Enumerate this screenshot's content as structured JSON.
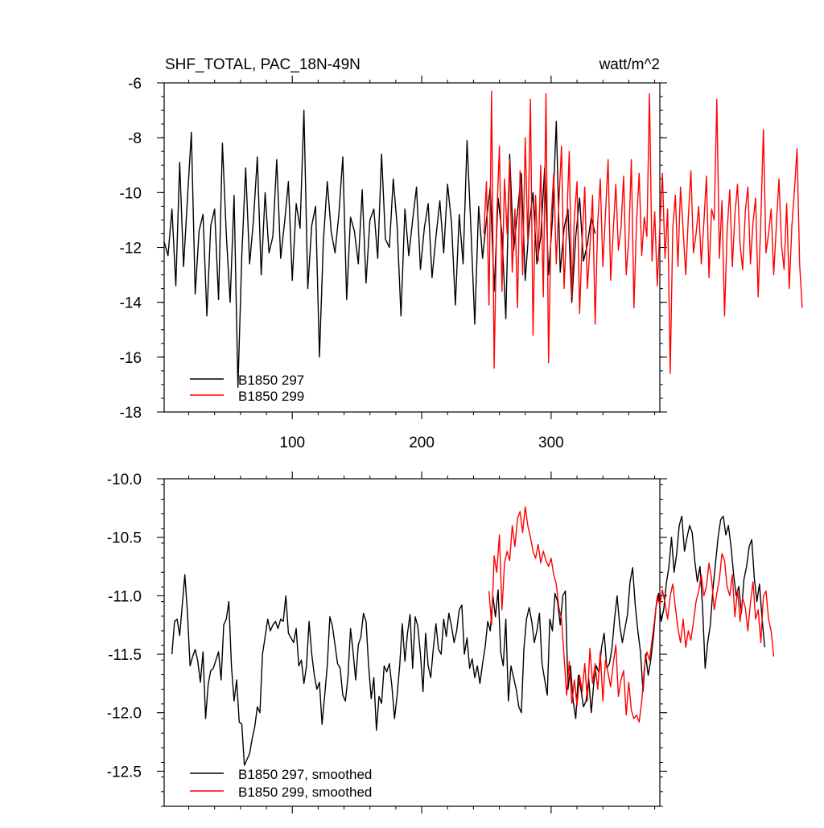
{
  "chart_data": [
    {
      "type": "line",
      "title": "SHF_TOTAL, PAC_18N-49N",
      "units": "watt/m^2",
      "xlim": [
        1,
        384
      ],
      "ylim": [
        -18,
        -6
      ],
      "x_ticks": [
        100,
        200,
        300
      ],
      "y_ticks": [
        -18,
        -16,
        -14,
        -12,
        -10,
        -8,
        -6
      ],
      "y_tick_labels": [
        "-18",
        "-16",
        "-14",
        "-12",
        "-10",
        "-8",
        "-6"
      ],
      "legend": {
        "placement": "bottom-left"
      },
      "series": [
        {
          "name": "B1850 297",
          "color": "#000000",
          "x_start": 1,
          "x_step": 3,
          "values": [
            -11.8,
            -12.3,
            -10.6,
            -13.4,
            -8.9,
            -12.7,
            -10.2,
            -7.8,
            -13.7,
            -11.4,
            -10.8,
            -14.5,
            -11.2,
            -10.6,
            -13.9,
            -8.2,
            -11.5,
            -14.0,
            -10.1,
            -17.1,
            -12.3,
            -9.1,
            -12.6,
            -11.0,
            -8.7,
            -13.0,
            -10.0,
            -12.2,
            -11.6,
            -8.8,
            -12.4,
            -11.1,
            -9.6,
            -13.2,
            -10.4,
            -11.3,
            -7.0,
            -13.5,
            -11.2,
            -10.5,
            -16.0,
            -11.8,
            -9.6,
            -11.4,
            -12.2,
            -10.8,
            -8.7,
            -13.9,
            -10.9,
            -11.4,
            -12.6,
            -9.9,
            -13.3,
            -11.0,
            -10.6,
            -12.4,
            -8.6,
            -11.7,
            -12.0,
            -9.5,
            -11.2,
            -14.5,
            -10.6,
            -12.3,
            -11.0,
            -9.8,
            -12.8,
            -11.3,
            -10.4,
            -13.1,
            -11.6,
            -10.3,
            -12.2,
            -9.7,
            -11.1,
            -14.1,
            -10.8,
            -12.6,
            -8.1,
            -11.3,
            -14.8,
            -10.5,
            -12.4,
            -11.0,
            -9.8,
            -13.6,
            -10.2,
            -11.5,
            -14.6,
            -8.6,
            -12.1,
            -10.7,
            -9.3,
            -13.2,
            -11.2,
            -10.0,
            -12.6,
            -11.6,
            -9.1,
            -13.0,
            -11.0,
            -7.4,
            -12.9,
            -11.3,
            -10.6,
            -14.0,
            -11.6,
            -10.2,
            -12.5,
            -11.9,
            -10.9,
            -11.5
          ]
        },
        {
          "name": "B1850 299",
          "color": "#ff0000",
          "x_start": 248,
          "x_step": 2,
          "values": [
            -11.5,
            -9.6,
            -14.1,
            -6.3,
            -16.4,
            -11.0,
            -8.3,
            -13.6,
            -9.5,
            -11.5,
            -8.8,
            -12.9,
            -10.6,
            -14.2,
            -9.2,
            -13.0,
            -8.0,
            -11.8,
            -6.6,
            -15.2,
            -10.1,
            -12.5,
            -9.0,
            -13.8,
            -6.4,
            -16.2,
            -11.0,
            -9.3,
            -12.6,
            -10.4,
            -8.3,
            -13.5,
            -11.2,
            -8.5,
            -13.8,
            -10.9,
            -9.6,
            -14.4,
            -11.7,
            -9.8,
            -13.5,
            -12.0,
            -10.1,
            -14.8,
            -11.1,
            -9.5,
            -12.7,
            -10.8,
            -8.8,
            -13.2,
            -11.4,
            -9.7,
            -12.1,
            -11.3,
            -9.4,
            -13.0,
            -11.7,
            -8.8,
            -14.2,
            -11.1,
            -9.3,
            -12.3,
            -10.9,
            -11.6,
            -6.4,
            -12.5,
            -10.7,
            -13.4,
            -11.3,
            -9.3,
            -12.4,
            -10.6,
            -16.6,
            -11.3,
            -10.1,
            -12.7,
            -9.8,
            -11.4,
            -13.0,
            -10.9,
            -9.2,
            -12.2,
            -11.5,
            -10.5,
            -12.6,
            -11.1,
            -9.4,
            -13.1,
            -10.6,
            -11.0,
            -6.6,
            -12.4,
            -10.3,
            -14.5,
            -11.4,
            -9.9,
            -12.7,
            -10.8,
            -9.7,
            -11.9,
            -12.8,
            -10.7,
            -9.8,
            -12.6,
            -11.1,
            -10.2,
            -13.8,
            -11.0,
            -7.7,
            -12.2,
            -11.5,
            -10.6,
            -13.0,
            -11.2,
            -9.5,
            -11.9,
            -12.8,
            -10.4,
            -13.5,
            -11.2,
            -9.9,
            -8.4,
            -12.6,
            -14.2
          ]
        }
      ]
    },
    {
      "type": "line",
      "xlim": [
        1,
        384
      ],
      "ylim": [
        -12.8,
        -10.0
      ],
      "y_ticks": [
        -12.5,
        -12.0,
        -11.5,
        -11.0,
        -10.5,
        -10.0
      ],
      "y_tick_labels": [
        "-12.5",
        "-12.0",
        "-11.5",
        "-11.0",
        "-10.5",
        "-10.0"
      ],
      "legend": {
        "placement": "bottom-left"
      },
      "series": [
        {
          "name": "B1850 297, smoothed",
          "color": "#000000",
          "x_start": 7,
          "x_step": 2,
          "values": [
            -11.5,
            -11.22,
            -11.2,
            -11.34,
            -11.08,
            -10.82,
            -11.15,
            -11.6,
            -11.52,
            -11.46,
            -11.56,
            -11.74,
            -11.48,
            -12.05,
            -11.76,
            -11.64,
            -11.62,
            -11.55,
            -11.48,
            -11.72,
            -11.25,
            -11.2,
            -11.05,
            -11.6,
            -11.9,
            -11.72,
            -12.08,
            -12.1,
            -12.45,
            -12.4,
            -12.35,
            -12.22,
            -12.12,
            -11.95,
            -12.0,
            -11.5,
            -11.35,
            -11.2,
            -11.3,
            -11.25,
            -11.22,
            -11.28,
            -11.2,
            -11.22,
            -11.0,
            -11.32,
            -11.36,
            -11.4,
            -11.28,
            -11.6,
            -11.55,
            -11.75,
            -11.6,
            -11.22,
            -11.5,
            -11.68,
            -11.8,
            -11.74,
            -12.1,
            -11.86,
            -11.6,
            -11.18,
            -11.26,
            -11.42,
            -11.58,
            -11.62,
            -11.85,
            -11.9,
            -11.7,
            -11.28,
            -11.48,
            -11.72,
            -11.42,
            -11.35,
            -11.15,
            -11.22,
            -11.6,
            -11.88,
            -11.7,
            -12.15,
            -11.86,
            -11.92,
            -11.6,
            -11.65,
            -11.58,
            -11.78,
            -12.05,
            -11.85,
            -11.6,
            -11.24,
            -11.56,
            -11.32,
            -11.16,
            -11.62,
            -11.18,
            -11.26,
            -11.5,
            -11.82,
            -11.32,
            -11.6,
            -11.7,
            -11.45,
            -11.24,
            -11.46,
            -11.5,
            -11.2,
            -11.35,
            -11.15,
            -11.26,
            -11.4,
            -11.3,
            -11.12,
            -11.08,
            -11.5,
            -11.36,
            -11.62,
            -11.54,
            -11.7,
            -11.6,
            -11.75,
            -11.58,
            -11.44,
            -11.22,
            -11.3,
            -11.0,
            -11.18,
            -10.95,
            -11.48,
            -11.6,
            -11.2,
            -11.9,
            -11.6,
            -11.7,
            -11.8,
            -11.95,
            -12.0,
            -11.45,
            -11.2,
            -11.1,
            -11.22,
            -11.4,
            -11.3,
            -11.15,
            -11.58,
            -11.72,
            -11.85,
            -11.2,
            -11.3,
            -10.98,
            -11.05,
            -11.25,
            -11.0,
            -10.96,
            -11.8,
            -11.6,
            -11.9,
            -12.05,
            -11.68,
            -11.8,
            -11.95,
            -11.9,
            -11.7,
            -12.0,
            -11.74,
            -11.6,
            -11.66,
            -11.44,
            -11.32,
            -11.62,
            -11.58,
            -11.45,
            -11.2,
            -11.0,
            -11.25,
            -11.4,
            -11.28,
            -11.16,
            -10.88,
            -10.76,
            -11.08,
            -11.3,
            -11.48,
            -11.82,
            -11.5,
            -11.68,
            -11.55,
            -11.35,
            -11.1,
            -10.98,
            -11.22,
            -11.12,
            -10.9,
            -10.75,
            -10.5,
            -10.8,
            -10.64,
            -10.4,
            -10.32,
            -10.62,
            -10.5,
            -10.4,
            -10.46,
            -10.7,
            -10.88,
            -10.75,
            -11.1,
            -11.62,
            -11.4,
            -11.25,
            -10.95,
            -10.72,
            -10.5,
            -10.35,
            -10.32,
            -10.48,
            -10.4,
            -10.58,
            -10.82,
            -11.0,
            -10.92,
            -11.15,
            -10.86,
            -10.75,
            -10.58,
            -10.52,
            -10.85,
            -11.05,
            -10.9,
            -11.2,
            -11.44
          ]
        },
        {
          "name": "B1850 299, smoothed",
          "color": "#ff0000",
          "x_start": 252,
          "x_step": 2,
          "values": [
            -10.96,
            -11.25,
            -10.66,
            -10.8,
            -10.48,
            -11.12,
            -10.72,
            -10.62,
            -10.7,
            -10.4,
            -10.58,
            -10.34,
            -10.28,
            -10.46,
            -10.24,
            -10.4,
            -10.5,
            -10.62,
            -10.68,
            -10.56,
            -10.72,
            -10.62,
            -10.7,
            -10.75,
            -10.68,
            -10.82,
            -10.9,
            -11.1,
            -11.2,
            -11.52,
            -11.85,
            -11.56,
            -11.92,
            -11.72,
            -11.94,
            -11.68,
            -11.82,
            -11.58,
            -11.9,
            -11.45,
            -11.75,
            -11.58,
            -11.8,
            -11.48,
            -11.9,
            -11.55,
            -11.66,
            -11.78,
            -11.58,
            -11.42,
            -11.86,
            -11.72,
            -11.64,
            -12.02,
            -11.74,
            -11.98,
            -12.05,
            -12.02,
            -12.08,
            -11.9,
            -11.62,
            -11.48,
            -11.55,
            -11.38,
            -11.2,
            -11.0,
            -11.08,
            -10.95,
            -11.06,
            -11.2,
            -11.0,
            -10.9,
            -11.1,
            -11.28,
            -11.4,
            -11.2,
            -11.44,
            -11.3,
            -11.38,
            -11.22,
            -11.05,
            -10.96,
            -10.82,
            -11.0,
            -10.92,
            -10.72,
            -10.86,
            -11.12,
            -10.98,
            -10.86,
            -10.64,
            -10.7,
            -10.92,
            -11.0,
            -10.82,
            -11.18,
            -10.95,
            -11.22,
            -11.02,
            -11.1,
            -11.3,
            -11.06,
            -10.88,
            -11.2,
            -11.12,
            -11.4,
            -11.0,
            -10.96,
            -11.2,
            -11.3,
            -11.52
          ]
        }
      ]
    }
  ]
}
